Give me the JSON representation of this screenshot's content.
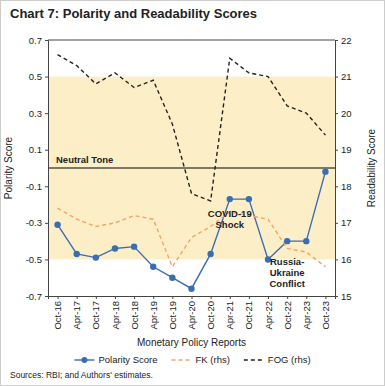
{
  "chart_data": {
    "type": "line",
    "title": "Chart 7: Polarity and Readability Scores",
    "x_label": "Monetary Policy Reports",
    "y_label": "Polarity Score",
    "y2_label": "Readability Score",
    "source": "Sources: RBI; and Authors' estimates.",
    "categories": [
      "Oct-16",
      "Apr-17",
      "Oct-17",
      "Apr-18",
      "Oct-18",
      "Apr-19",
      "Oct-19",
      "Apr-20",
      "Oct-20",
      "Apr-21",
      "Oct-21",
      "Apr-22",
      "Oct-22",
      "Apr-23",
      "Oct-23"
    ],
    "ylim": [
      -0.7,
      0.7
    ],
    "yticks": [
      -0.7,
      -0.5,
      -0.3,
      -0.1,
      0.1,
      0.3,
      0.5,
      0.7
    ],
    "y2lim": [
      15,
      22
    ],
    "y2ticks": [
      15,
      16,
      17,
      18,
      19,
      20,
      21,
      22
    ],
    "series": [
      {
        "name": "Polarity Score",
        "color": "#3b6db3",
        "marker": "circle",
        "line_style": "solid",
        "values": [
          -0.31,
          -0.47,
          -0.49,
          -0.44,
          -0.43,
          -0.54,
          -0.6,
          -0.66,
          -0.47,
          -0.17,
          -0.17,
          -0.5,
          -0.4,
          -0.4,
          -0.02
        ]
      },
      {
        "name": "FK (rhs)",
        "color": "#f4a46a",
        "line_style": "dashed",
        "axis": "y2",
        "values": [
          17.4,
          17.1,
          16.9,
          17.0,
          17.2,
          17.1,
          15.8,
          16.6,
          16.9,
          17.3,
          17.2,
          17.1,
          16.3,
          16.2,
          15.8
        ]
      },
      {
        "name": "FOG (rhs)",
        "color": "#222222",
        "line_style": "dashed",
        "axis": "y2",
        "values": [
          21.6,
          21.3,
          20.8,
          21.1,
          20.7,
          20.9,
          19.7,
          17.8,
          17.6,
          21.5,
          21.1,
          21.0,
          20.2,
          20.0,
          19.4
        ]
      }
    ],
    "bands": [
      {
        "from": -0.5,
        "to": 0.5,
        "label": "Neutral Tone",
        "color": "#fcefc7"
      }
    ],
    "hlines": [
      0
    ],
    "annotations": [
      {
        "lines": [
          "COVID-19",
          "Shock"
        ],
        "x": "Apr-21",
        "y": -0.27
      },
      {
        "lines": [
          "Russia-",
          "Ukraine",
          "Conflict"
        ],
        "x": "Oct-22",
        "y": -0.53
      }
    ],
    "legend": "bottom"
  }
}
